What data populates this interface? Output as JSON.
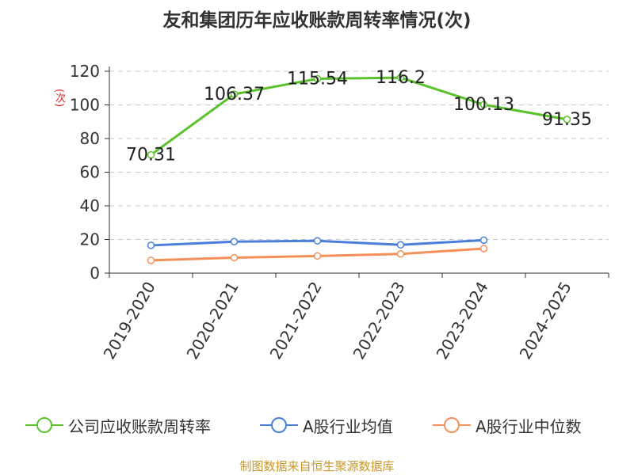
{
  "title": "友和集团历年应收账款周转率情况(次)",
  "unit_label": "(次)",
  "source": "制图数据来自恒生聚源数据库",
  "legend": {
    "company": "公司应收账款周转率",
    "avg": "A股行业均值",
    "median": "A股行业中位数"
  },
  "colors": {
    "company": "#5cc22c",
    "avg": "#4a7fd9",
    "median": "#f4915a",
    "grid": "#c8c8c8",
    "axis": "#333333"
  },
  "chart_data": {
    "type": "line",
    "categories": [
      "2019-2020",
      "2020-2021",
      "2021-2022",
      "2022-2023",
      "2023-2024",
      "2024-2025"
    ],
    "ylim": [
      0,
      120
    ],
    "yticks": [
      0,
      20,
      40,
      60,
      80,
      100,
      120
    ],
    "grid": true,
    "legend_position": "bottom",
    "series": [
      {
        "key": "company",
        "name": "公司应收账款周转率",
        "values": [
          70.31,
          106.37,
          115.54,
          116.2,
          100.13,
          91.35
        ],
        "labels": [
          "70.31",
          "106.37",
          "115.54",
          "116.2",
          "100.13",
          "91.35"
        ]
      },
      {
        "key": "avg",
        "name": "A股行业均值",
        "values": [
          16.5,
          18.7,
          19.2,
          16.8,
          19.6,
          null
        ]
      },
      {
        "key": "median",
        "name": "A股行业中位数",
        "values": [
          7.6,
          9.2,
          10.2,
          11.4,
          14.6,
          null
        ]
      }
    ]
  }
}
